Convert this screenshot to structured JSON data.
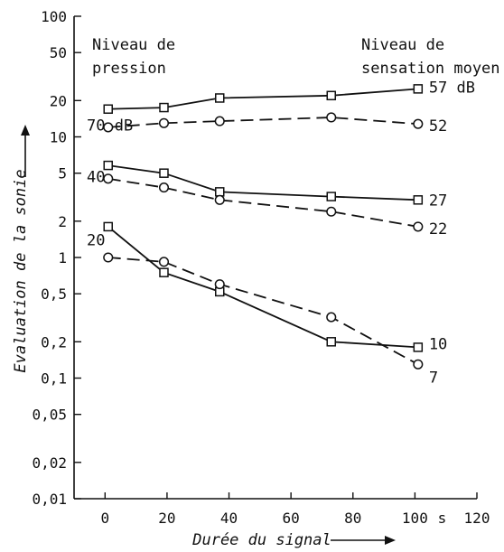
{
  "chart_data": {
    "type": "line",
    "title": "",
    "xlabel": "Durée du signal",
    "ylabel": "Evaluation de la sonie",
    "x_unit": "s",
    "x_ticks": [
      "0",
      "20",
      "40",
      "60",
      "80",
      "100",
      "120"
    ],
    "y_ticks": [
      "0,01",
      "0,02",
      "0,05",
      "0,1",
      "0,2",
      "0,5",
      "1",
      "2",
      "5",
      "10",
      "20",
      "50",
      "100"
    ],
    "y_tick_values": [
      0.01,
      0.02,
      0.05,
      0.1,
      0.2,
      0.5,
      1,
      2,
      5,
      10,
      20,
      50,
      100
    ],
    "xlim": [
      -10,
      120
    ],
    "ylim": [
      0.01,
      100
    ],
    "y_scale": "log",
    "grid": false,
    "left_header": "Niveau de\npression",
    "right_header": "Niveau de\nsensation moyen",
    "series": [
      {
        "group": "70 dB",
        "right_label": "57 dB",
        "marker": "square",
        "dash": "solid",
        "x": [
          1,
          19,
          37,
          73,
          101
        ],
        "y": [
          17,
          17.5,
          21,
          22,
          25
        ]
      },
      {
        "group": "70 dB",
        "right_label": "52",
        "marker": "circle",
        "dash": "dashed",
        "x": [
          1,
          19,
          37,
          73,
          101
        ],
        "y": [
          12,
          13,
          13.5,
          14.5,
          12.8
        ]
      },
      {
        "group": "40",
        "right_label": "27",
        "marker": "square",
        "dash": "solid",
        "x": [
          1,
          19,
          37,
          73,
          101
        ],
        "y": [
          5.8,
          5,
          3.5,
          3.2,
          3.0
        ]
      },
      {
        "group": "40",
        "right_label": "22",
        "marker": "circle",
        "dash": "dashed",
        "x": [
          1,
          19,
          37,
          73,
          101
        ],
        "y": [
          4.5,
          3.8,
          3.0,
          2.4,
          1.8
        ]
      },
      {
        "group": "20",
        "right_label": "10",
        "marker": "square",
        "dash": "solid",
        "x": [
          1,
          19,
          37,
          73,
          101
        ],
        "y": [
          1.8,
          0.75,
          0.52,
          0.2,
          0.18
        ]
      },
      {
        "group": "20",
        "right_label": "7",
        "marker": "circle",
        "dash": "dashed",
        "x": [
          1,
          19,
          37,
          73,
          101
        ],
        "y": [
          1.0,
          0.92,
          0.6,
          0.32,
          0.13
        ]
      }
    ],
    "group_labels": [
      "70 dB",
      "40",
      "20"
    ],
    "group_label_y": [
      12.5,
      4.7,
      1.4
    ],
    "colors": {
      "ink": "#111111",
      "background": "#ffffff"
    }
  }
}
